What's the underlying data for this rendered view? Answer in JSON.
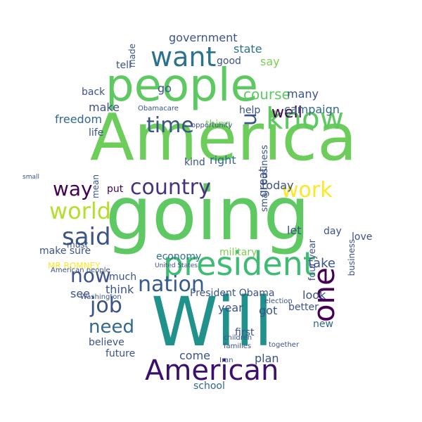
{
  "words": {
    "america": "America",
    "going": "going",
    "will": "Will",
    "people": "people",
    "president": "president",
    "american": "American",
    "know": "know",
    "one": "one",
    "country": "country",
    "nation": "nation",
    "job": "job",
    "said": "said",
    "world": "world",
    "want": "want",
    "time": "time",
    "work": "work",
    "now": "now",
    "way": "way",
    "need": "need",
    "u": "u",
    "government": "government",
    "state": "state",
    "good": "good",
    "say": "say",
    "tell": "tell",
    "made": "made",
    "make": "make",
    "back": "back",
    "freedom": "freedom",
    "life": "life",
    "thing": "thing",
    "go": "go",
    "well": "well",
    "course": "course",
    "many": "many",
    "campaign": "campaign",
    "help": "help",
    "right": "right",
    "kind": "kind",
    "today": "today",
    "let": "let",
    "love": "love",
    "day": "day",
    "take": "take",
    "look": "look",
    "got": "got",
    "year": "year",
    "new": "new",
    "plan": "plan",
    "come": "come",
    "school": "school",
    "put": "put",
    "mean": "mean",
    "much": "much",
    "see": "see",
    "think": "think",
    "economy": "economy",
    "military": "military",
    "believe": "believe",
    "future": "future",
    "must": "must",
    "make_sure": "make sure",
    "mr_romney": "MR ROMNEY",
    "president_obama": "President Obama",
    "first": "first",
    "better": "better",
    "four_year": "four year",
    "great": "great",
    "small_business": "small business",
    "obamacare": "Obamacare",
    "opportunity": "opportunity",
    "united_states": "United States",
    "american_people": "American people",
    "washington": "Washington",
    "iran": "Iran",
    "children": "children",
    "families": "families",
    "election": "election",
    "together": "together",
    "business": "business",
    "small": "small"
  },
  "colors": {
    "background": "#ffffff",
    "palette": [
      "#440154",
      "#3b528b",
      "#21918c",
      "#5ec962",
      "#fde725"
    ]
  }
}
